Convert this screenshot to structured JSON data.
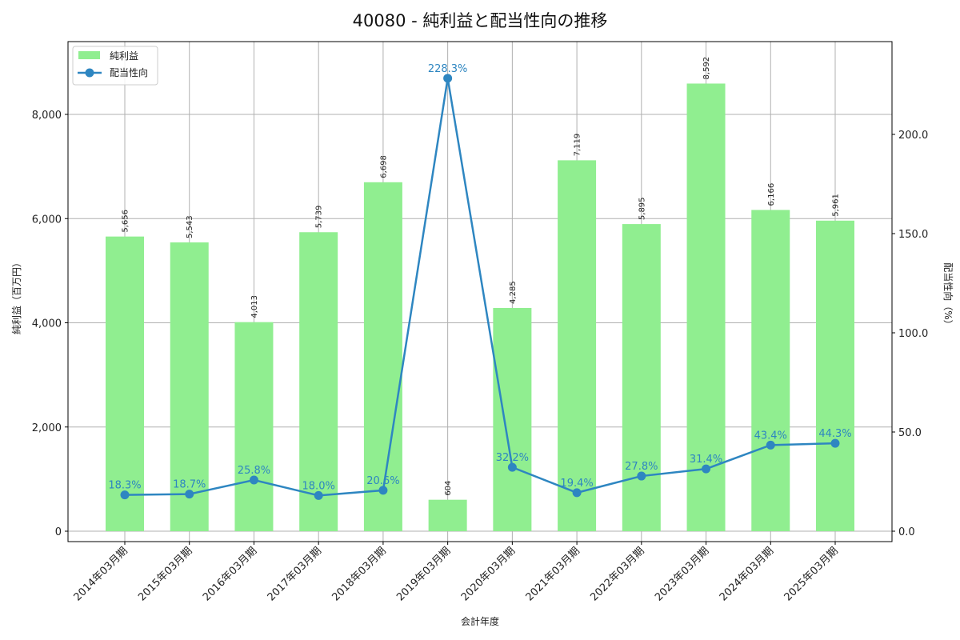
{
  "chart_data": {
    "type": "bar+line",
    "title": "40080 - 純利益と配当性向の推移",
    "xlabel": "会計年度",
    "ylabel_left": "純利益（百万円）",
    "ylabel_right": "配当性向（%）",
    "categories": [
      "2014年03月期",
      "2015年03月期",
      "2016年03月期",
      "2017年03月期",
      "2018年03月期",
      "2019年03月期",
      "2020年03月期",
      "2021年03月期",
      "2022年03月期",
      "2023年03月期",
      "2024年03月期",
      "2025年03月期"
    ],
    "series": [
      {
        "name": "純利益",
        "type": "bar",
        "axis": "left",
        "color": "#90ee90",
        "values": [
          5656,
          5543,
          4013,
          5739,
          6698,
          604,
          4285,
          7119,
          5895,
          8592,
          6166,
          5961
        ],
        "labels": [
          "5,656",
          "5,543",
          "4,013",
          "5,739",
          "6,698",
          "604",
          "4,285",
          "7,119",
          "5,895",
          "8,592",
          "6,166",
          "5,961"
        ]
      },
      {
        "name": "配当性向",
        "type": "line",
        "axis": "right",
        "color": "#2e86c1",
        "marker": "circle",
        "values": [
          18.3,
          18.7,
          25.8,
          18.0,
          20.6,
          228.3,
          32.2,
          19.4,
          27.8,
          31.4,
          43.4,
          44.3
        ],
        "labels": [
          "18.3%",
          "18.7%",
          "25.8%",
          "18.0%",
          "20.6%",
          "228.3%",
          "32.2%",
          "19.4%",
          "27.8%",
          "31.4%",
          "43.4%",
          "44.3%"
        ]
      }
    ],
    "left_axis": {
      "ylim": [
        -200,
        9400
      ],
      "ticks": [
        0,
        2000,
        4000,
        6000,
        8000
      ],
      "tick_labels": [
        "0",
        "2,000",
        "4,000",
        "6,000",
        "8,000"
      ]
    },
    "right_axis": {
      "ylim": [
        -5.2,
        242
      ],
      "ticks": [
        0,
        50,
        100,
        150,
        200
      ],
      "tick_labels": [
        "0.0",
        "50.0",
        "100.0",
        "150.0",
        "200.0"
      ]
    },
    "grid": true,
    "legend": {
      "position": "upper left",
      "entries": [
        "純利益",
        "配当性向"
      ]
    }
  }
}
